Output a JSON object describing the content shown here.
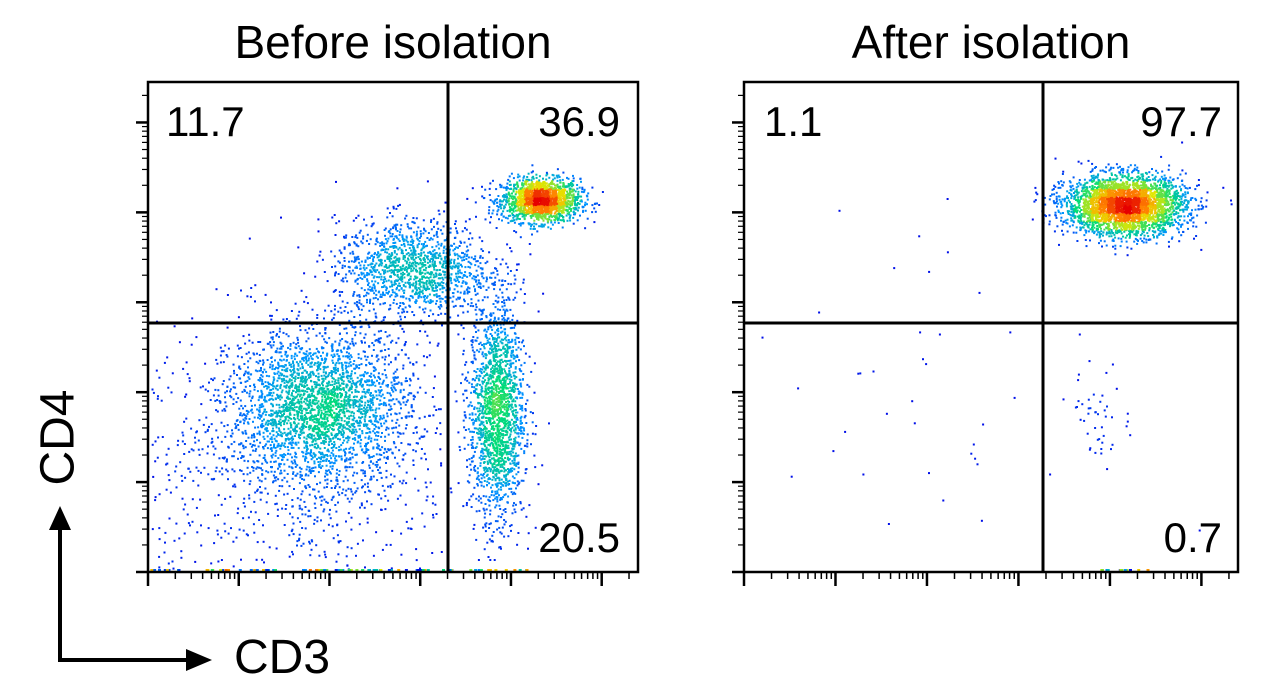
{
  "axes": {
    "x_label": "CD3",
    "y_label": "CD4"
  },
  "chart_data": [
    {
      "type": "scatter",
      "title": "Before isolation",
      "xlabel": "CD3",
      "ylabel": "CD4",
      "quadrant_percentages": {
        "top_left": "11.7",
        "top_right": "36.9",
        "bottom_left": "",
        "bottom_right": "20.5"
      },
      "populations": [
        {
          "name": "",
          "center": [
            0.8,
            0.76
          ],
          "spread": [
            0.04,
            0.022
          ],
          "count": 1700
        },
        {
          "name": "",
          "center": [
            0.54,
            0.62
          ],
          "spread": [
            0.08,
            0.05
          ],
          "count": 1400
        },
        {
          "name": "",
          "center": [
            0.35,
            0.34
          ],
          "spread": [
            0.09,
            0.075
          ],
          "count": 2600
        },
        {
          "name": "",
          "center": [
            0.71,
            0.33
          ],
          "spread": [
            0.028,
            0.11
          ],
          "count": 1800
        },
        {
          "name": "",
          "center": [
            0.28,
            0.22
          ],
          "spread": [
            0.18,
            0.14
          ],
          "count": 900
        }
      ]
    },
    {
      "type": "scatter",
      "title": "After isolation",
      "xlabel": "CD3",
      "ylabel": "CD4",
      "quadrant_percentages": {
        "top_left": "1.1",
        "top_right": "97.7",
        "bottom_left": "",
        "bottom_right": "0.7"
      },
      "populations": [
        {
          "name": "",
          "center": [
            0.77,
            0.75
          ],
          "spread": [
            0.06,
            0.03
          ],
          "count": 3200
        },
        {
          "name": "",
          "center": [
            0.72,
            0.32
          ],
          "spread": [
            0.03,
            0.05
          ],
          "count": 45
        },
        {
          "name": "",
          "center": [
            0.4,
            0.4
          ],
          "spread": [
            0.22,
            0.18
          ],
          "count": 40
        }
      ]
    }
  ]
}
